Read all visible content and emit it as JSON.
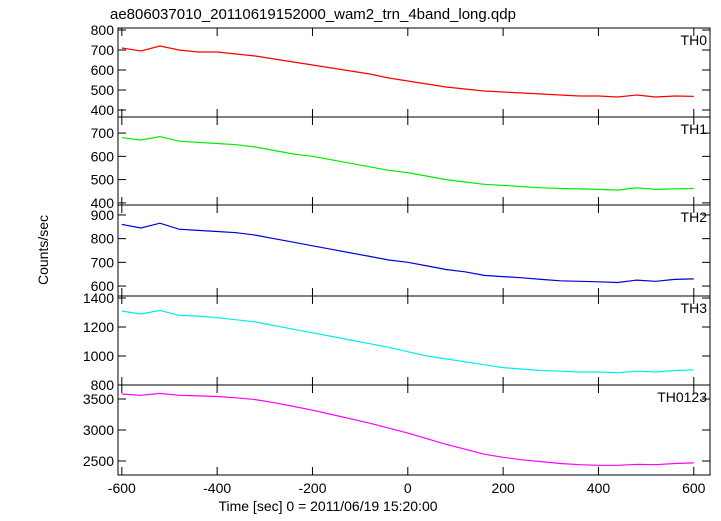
{
  "chart_data": {
    "type": "line",
    "title": "ae806037010_20110619152000_wam2_trn_4band_long.qdp",
    "x_label": "Time [sec] 0 = 2011/06/19 15:20:00",
    "y_label": "Counts/sec",
    "xlim": [
      -608,
      634
    ],
    "xticks": [
      -600,
      -400,
      -200,
      0,
      200,
      400,
      600
    ],
    "x": [
      -600,
      -560,
      -520,
      -480,
      -440,
      -400,
      -360,
      -320,
      -280,
      -240,
      -200,
      -160,
      -120,
      -80,
      -40,
      0,
      40,
      80,
      120,
      160,
      200,
      240,
      280,
      320,
      360,
      400,
      440,
      480,
      520,
      560,
      600
    ],
    "series": [
      {
        "name": "TH0",
        "color": "#ff0000",
        "ylim": [
          365,
          810
        ],
        "yticks": [
          400,
          500,
          600,
          700,
          800
        ],
        "values": [
          710,
          695,
          720,
          700,
          690,
          690,
          680,
          670,
          655,
          640,
          625,
          610,
          595,
          580,
          560,
          545,
          530,
          515,
          505,
          495,
          490,
          485,
          480,
          475,
          470,
          470,
          465,
          475,
          465,
          470,
          468
        ]
      },
      {
        "name": "TH1",
        "color": "#00ee00",
        "ylim": [
          391,
          769
        ],
        "yticks": [
          400,
          500,
          600,
          700
        ],
        "values": [
          680,
          670,
          685,
          665,
          660,
          655,
          650,
          640,
          625,
          610,
          600,
          585,
          570,
          555,
          540,
          530,
          515,
          500,
          490,
          480,
          475,
          470,
          465,
          462,
          460,
          458,
          455,
          465,
          458,
          460,
          462
        ]
      },
      {
        "name": "TH2",
        "color": "#0000dd",
        "ylim": [
          558,
          942
        ],
        "yticks": [
          600,
          700,
          800,
          900
        ],
        "values": [
          860,
          845,
          865,
          840,
          835,
          830,
          825,
          815,
          800,
          785,
          770,
          755,
          740,
          725,
          710,
          700,
          685,
          670,
          660,
          645,
          640,
          635,
          628,
          622,
          620,
          618,
          615,
          625,
          620,
          628,
          630
        ]
      },
      {
        "name": "TH3",
        "color": "#00eeee",
        "ylim": [
          800,
          1414
        ],
        "yticks": [
          800,
          1000,
          1200,
          1400
        ],
        "values": [
          1310,
          1290,
          1315,
          1280,
          1275,
          1265,
          1250,
          1235,
          1210,
          1185,
          1160,
          1135,
          1110,
          1085,
          1060,
          1030,
          1000,
          980,
          960,
          940,
          920,
          910,
          900,
          895,
          890,
          890,
          885,
          895,
          890,
          900,
          905
        ]
      },
      {
        "name": "TH0123",
        "color": "#ff00ff",
        "ylim": [
          2274,
          3726
        ],
        "yticks": [
          2500,
          3000,
          3500
        ],
        "values": [
          3580,
          3560,
          3590,
          3560,
          3550,
          3540,
          3520,
          3490,
          3440,
          3380,
          3320,
          3250,
          3180,
          3110,
          3030,
          2950,
          2860,
          2770,
          2690,
          2610,
          2560,
          2520,
          2490,
          2460,
          2440,
          2430,
          2430,
          2445,
          2440,
          2460,
          2470
        ]
      }
    ]
  }
}
